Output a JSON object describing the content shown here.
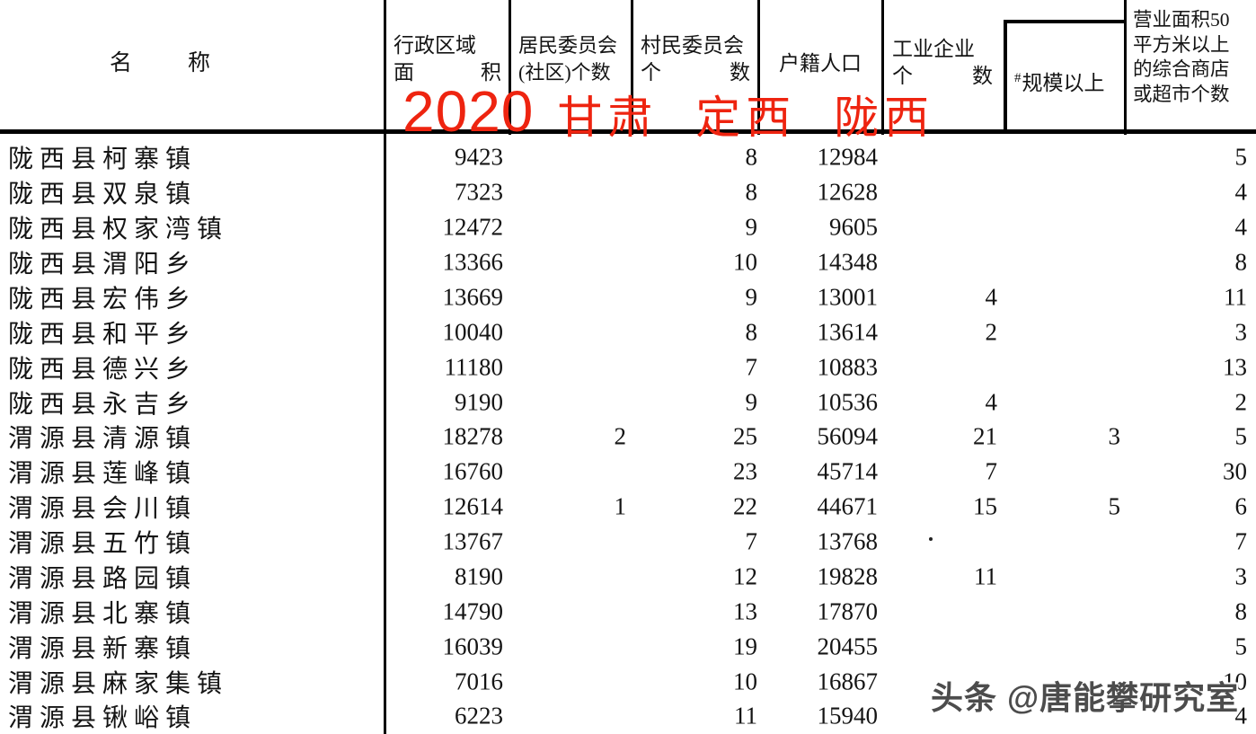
{
  "header": {
    "name_left": "名",
    "name_right": "称",
    "area_line1": "行政区域",
    "area_left": "面",
    "area_right": "积",
    "jumin_line1": "居民委员会",
    "jumin_line2": "(社区)个数",
    "cunmin_line1": "村民委员会",
    "cunmin_left": "个",
    "cunmin_right": "数",
    "hukou": "户籍人口",
    "gongye_line1": "工业企业",
    "gongye_left": "个",
    "gongye_right": "数",
    "guimo_hash": "#",
    "guimo": "规模以上",
    "shop_line1": "营业面积50",
    "shop_line2": "平方米以上",
    "shop_line3": "的综合商店",
    "shop_line4": "或超市个数"
  },
  "watermarks": {
    "red_year": "2020",
    "red_text": "甘肃 定西 陇西",
    "red_color": "#ee2410",
    "gray_text": "头条 @唐能攀研究室"
  },
  "table": {
    "rows": [
      {
        "name": "陇西县柯寨镇",
        "area": "9423",
        "jumin": "",
        "cunmin": "8",
        "hukou": "12984",
        "gongye": "",
        "guimo": "",
        "shop": "5"
      },
      {
        "name": "陇西县双泉镇",
        "area": "7323",
        "jumin": "",
        "cunmin": "8",
        "hukou": "12628",
        "gongye": "",
        "guimo": "",
        "shop": "4"
      },
      {
        "name": "陇西县权家湾镇",
        "area": "12472",
        "jumin": "",
        "cunmin": "9",
        "hukou": "9605",
        "gongye": "",
        "guimo": "",
        "shop": "4"
      },
      {
        "name": "陇西县渭阳乡",
        "area": "13366",
        "jumin": "",
        "cunmin": "10",
        "hukou": "14348",
        "gongye": "",
        "guimo": "",
        "shop": "8"
      },
      {
        "name": "陇西县宏伟乡",
        "area": "13669",
        "jumin": "",
        "cunmin": "9",
        "hukou": "13001",
        "gongye": "4",
        "guimo": "",
        "shop": "11"
      },
      {
        "name": "陇西县和平乡",
        "area": "10040",
        "jumin": "",
        "cunmin": "8",
        "hukou": "13614",
        "gongye": "2",
        "guimo": "",
        "shop": "3"
      },
      {
        "name": "陇西县德兴乡",
        "area": "11180",
        "jumin": "",
        "cunmin": "7",
        "hukou": "10883",
        "gongye": "",
        "guimo": "",
        "shop": "13"
      },
      {
        "name": "陇西县永吉乡",
        "area": "9190",
        "jumin": "",
        "cunmin": "9",
        "hukou": "10536",
        "gongye": "4",
        "guimo": "",
        "shop": "2"
      },
      {
        "name": "渭源县清源镇",
        "area": "18278",
        "jumin": "2",
        "cunmin": "25",
        "hukou": "56094",
        "gongye": "21",
        "guimo": "3",
        "shop": "5"
      },
      {
        "name": "渭源县莲峰镇",
        "area": "16760",
        "jumin": "",
        "cunmin": "23",
        "hukou": "45714",
        "gongye": "7",
        "guimo": "",
        "shop": "30"
      },
      {
        "name": "渭源县会川镇",
        "area": "12614",
        "jumin": "1",
        "cunmin": "22",
        "hukou": "44671",
        "gongye": "15",
        "guimo": "5",
        "shop": "6"
      },
      {
        "name": "渭源县五竹镇",
        "area": "13767",
        "jumin": "",
        "cunmin": "7",
        "hukou": "13768",
        "gongye": "",
        "guimo": "",
        "shop": "7"
      },
      {
        "name": "渭源县路园镇",
        "area": "8190",
        "jumin": "",
        "cunmin": "12",
        "hukou": "19828",
        "gongye": "11",
        "guimo": "",
        "shop": "3"
      },
      {
        "name": "渭源县北寨镇",
        "area": "14790",
        "jumin": "",
        "cunmin": "13",
        "hukou": "17870",
        "gongye": "",
        "guimo": "",
        "shop": "8"
      },
      {
        "name": "渭源县新寨镇",
        "area": "16039",
        "jumin": "",
        "cunmin": "19",
        "hukou": "20455",
        "gongye": "",
        "guimo": "",
        "shop": "5"
      },
      {
        "name": "渭源县麻家集镇",
        "area": "7016",
        "jumin": "",
        "cunmin": "10",
        "hukou": "16867",
        "gongye": "",
        "guimo": "",
        "shop": "10"
      },
      {
        "name": "渭源县锹峪镇",
        "area": "6223",
        "jumin": "",
        "cunmin": "11",
        "hukou": "15940",
        "gongye": "",
        "guimo": "",
        "shop": "4"
      }
    ]
  }
}
